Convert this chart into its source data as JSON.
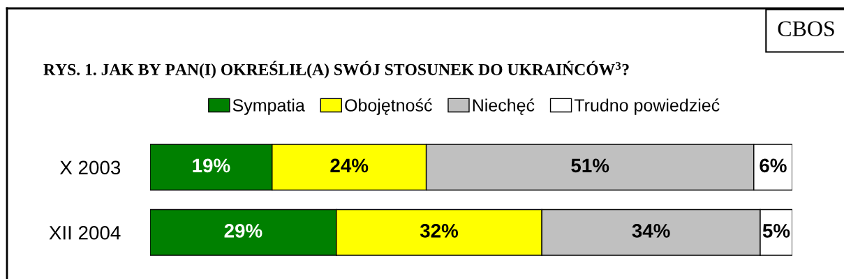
{
  "chart_data": {
    "type": "bar",
    "orientation": "horizontal",
    "stacked": true,
    "title": "RYS. 1. JAK BY PAN(I) OKREŚLIŁ(A) SWÓJ STOSUNEK DO UKRAIŃCÓW$^{3}$?",
    "categories": [
      "X 2003",
      "XII 2004"
    ],
    "series": [
      {
        "name": "Sympatia",
        "color": "#008000",
        "values": [
          19,
          29
        ],
        "value_labels": [
          "19%",
          "29%"
        ]
      },
      {
        "name": "Obojętność",
        "color": "#ffff00",
        "values": [
          24,
          32
        ],
        "value_labels": [
          "24%",
          "32%"
        ]
      },
      {
        "name": "Niechęć",
        "color": "#c0c0c0",
        "values": [
          51,
          34
        ],
        "value_labels": [
          "51%",
          "34%"
        ]
      },
      {
        "name": "Trudno powiedzieć",
        "color": "#ffffff",
        "values": [
          6,
          5
        ],
        "value_labels": [
          "6%",
          "5%"
        ]
      }
    ],
    "annotations": [
      "CBOS"
    ],
    "legend": "top",
    "tick_labels": "y"
  }
}
